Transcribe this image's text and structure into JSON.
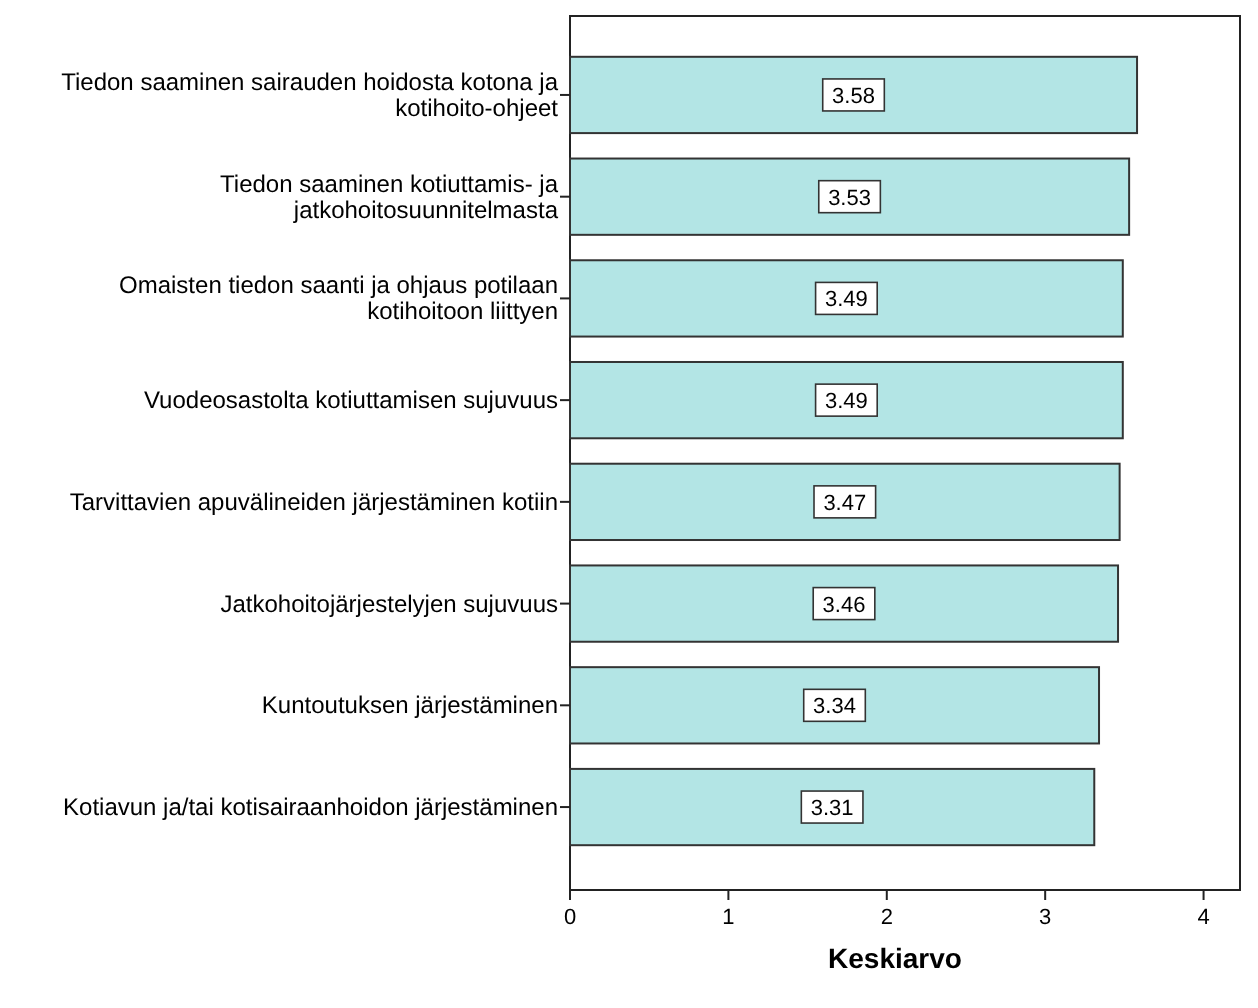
{
  "chart_data": {
    "type": "bar",
    "orientation": "horizontal",
    "xlabel": "Keskiarvo",
    "categories": [
      "Tiedon saaminen sairauden hoidosta kotona ja kotihoito-ohjeet",
      "Tiedon saaminen kotiuttamis- ja jatkohoitosuunnitelmasta",
      "Omaisten tiedon saanti ja ohjaus potilaan kotihoitoon liittyen",
      "Vuodeosastolta kotiuttamisen sujuvuus",
      "Tarvittavien apuvälineiden järjestäminen kotiin",
      "Jatkohoitojärjestelyjen sujuvuus",
      "Kuntoutuksen järjestäminen",
      "Kotiavun ja/tai kotisairaanhoidon järjestäminen"
    ],
    "values": [
      3.58,
      3.53,
      3.49,
      3.49,
      3.47,
      3.46,
      3.34,
      3.31
    ],
    "color": "#b3e5e5",
    "data_labels": true,
    "grid": false,
    "xlim": [
      0,
      4.23
    ],
    "xticks": [
      0,
      1,
      2,
      3,
      4
    ]
  }
}
